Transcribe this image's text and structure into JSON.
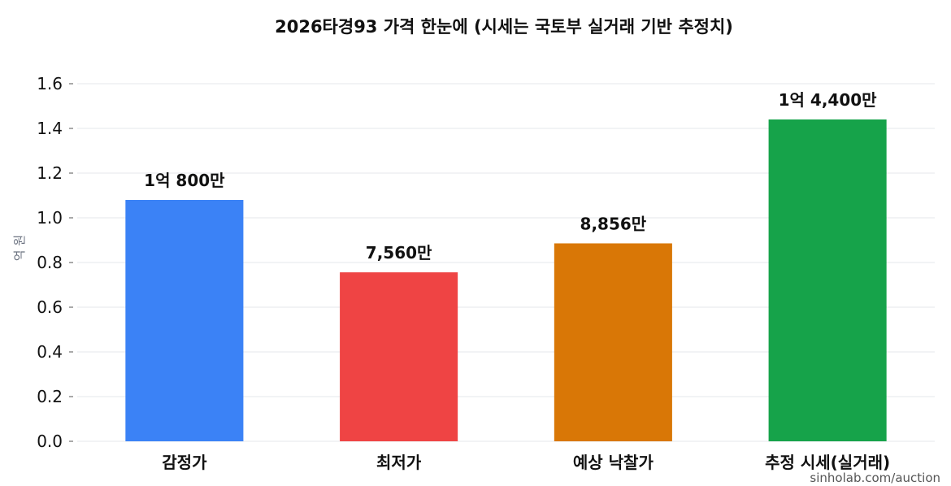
{
  "chart_data": {
    "type": "bar",
    "title": "2026타경93 가격 한눈에 (시세는 국토부 실거래 기반 추정치)",
    "ylabel": "억 원",
    "xlabel": "",
    "ylim": [
      0,
      1.6
    ],
    "yticks": [
      "0.0",
      "0.2",
      "0.4",
      "0.6",
      "0.8",
      "1.0",
      "1.2",
      "1.4",
      "1.6"
    ],
    "grid": true,
    "categories": [
      "감정가",
      "최저가",
      "예상 낙찰가",
      "추정 시세(실거래)"
    ],
    "values": [
      1.08,
      0.756,
      0.8856,
      1.44
    ],
    "value_labels": [
      "1억 800만",
      "7,560만",
      "8,856만",
      "1억 4,400만"
    ],
    "colors": [
      "#3b82f6",
      "#ef4444",
      "#d97706",
      "#16a34a"
    ]
  },
  "watermark": "sinholab.com/auction"
}
